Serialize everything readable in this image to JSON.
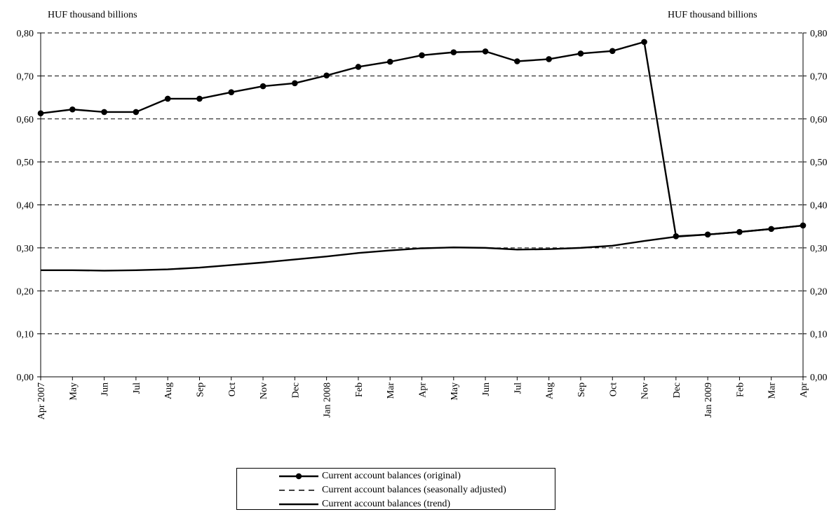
{
  "chart_data": {
    "type": "line",
    "ylabel_left": "HUF thousand billions",
    "ylabel_right": "HUF thousand billions",
    "ylim": [
      0,
      0.8
    ],
    "y_ticks": [
      "0,00",
      "0,10",
      "0,20",
      "0,30",
      "0,40",
      "0,50",
      "0,60",
      "0,70",
      "0,80"
    ],
    "y_tick_values": [
      0,
      0.1,
      0.2,
      0.3,
      0.4,
      0.5,
      0.6,
      0.7,
      0.8
    ],
    "grid": "horizontal dashed",
    "categories": [
      "Apr 2007",
      "May",
      "Jun",
      "Jul",
      "Aug",
      "Sep",
      "Oct",
      "Nov",
      "Dec",
      "Jan 2008",
      "Feb",
      "Mar",
      "Apr",
      "May",
      "Jun",
      "Jul",
      "Aug",
      "Sep",
      "Oct",
      "Nov",
      "Dec",
      "Jan 2009",
      "Feb",
      "Mar",
      "Apr"
    ],
    "series": [
      {
        "name": "Current account balances (original)",
        "style": "solid-markers",
        "values": [
          0.613,
          0.622,
          0.616,
          0.616,
          0.647,
          0.647,
          0.662,
          0.676,
          0.683,
          0.701,
          0.721,
          0.733,
          0.748,
          0.755,
          0.757,
          0.734,
          0.739,
          0.752,
          0.758,
          0.779,
          0.327,
          0.331,
          0.337,
          0.344,
          0.352
        ]
      },
      {
        "name": "Current account balances (seasonally adjusted)",
        "style": "dashed",
        "values": [
          0.248,
          0.248,
          0.247,
          0.248,
          0.25,
          0.254,
          0.26,
          0.266,
          0.273,
          0.28,
          0.288,
          0.294,
          0.299,
          0.301,
          0.3,
          0.296,
          0.297,
          0.3,
          0.305,
          0.316,
          0.326,
          0.331,
          0.337,
          0.344,
          0.352
        ]
      },
      {
        "name": "Current account balances (trend)",
        "style": "solid",
        "values": [
          0.248,
          0.248,
          0.247,
          0.248,
          0.25,
          0.254,
          0.26,
          0.266,
          0.273,
          0.28,
          0.288,
          0.294,
          0.299,
          0.301,
          0.3,
          0.296,
          0.297,
          0.3,
          0.305,
          0.316,
          0.326,
          0.331,
          0.337,
          0.344,
          0.352
        ]
      }
    ],
    "legend_position": "bottom-center"
  }
}
